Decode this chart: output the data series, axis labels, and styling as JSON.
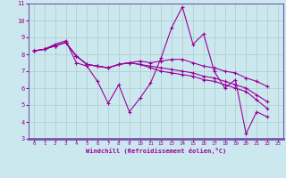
{
  "xlabel": "Windchill (Refroidissement éolien,°C)",
  "xlim": [
    -0.5,
    23.5
  ],
  "ylim": [
    3,
    11
  ],
  "xticks": [
    0,
    1,
    2,
    3,
    4,
    5,
    6,
    7,
    8,
    9,
    10,
    11,
    12,
    13,
    14,
    15,
    16,
    17,
    18,
    19,
    20,
    21,
    22,
    23
  ],
  "yticks": [
    3,
    4,
    5,
    6,
    7,
    8,
    9,
    10,
    11
  ],
  "bg_color": "#cce8ef",
  "grid_color": "#aacccc",
  "line_color": "#990099",
  "spine_color": "#7755aa",
  "series": [
    {
      "x": [
        0,
        1,
        2,
        3,
        4,
        5,
        6,
        7,
        8,
        9,
        10,
        11,
        12,
        13,
        14,
        15,
        16,
        17,
        18,
        19,
        20,
        21,
        22,
        23
      ],
      "y": [
        8.2,
        8.3,
        8.6,
        8.8,
        7.5,
        7.3,
        6.4,
        5.1,
        6.2,
        4.6,
        5.4,
        6.3,
        7.8,
        9.6,
        10.8,
        8.6,
        9.2,
        7.0,
        6.0,
        6.5,
        3.3,
        4.6,
        4.3,
        null
      ]
    },
    {
      "x": [
        0,
        1,
        2,
        3,
        4,
        5,
        6,
        7,
        8,
        9,
        10,
        11,
        12,
        13,
        14,
        15,
        16,
        17,
        18,
        19,
        20,
        21,
        22,
        23
      ],
      "y": [
        8.2,
        8.3,
        8.5,
        8.7,
        7.9,
        7.4,
        7.3,
        7.2,
        7.4,
        7.5,
        7.6,
        7.5,
        7.6,
        7.7,
        7.7,
        7.5,
        7.3,
        7.2,
        7.0,
        6.9,
        6.6,
        6.4,
        6.1,
        null
      ]
    },
    {
      "x": [
        0,
        1,
        2,
        3,
        4,
        5,
        6,
        7,
        8,
        9,
        10,
        11,
        12,
        13,
        14,
        15,
        16,
        17,
        18,
        19,
        20,
        21,
        22,
        23
      ],
      "y": [
        8.2,
        8.3,
        8.5,
        8.7,
        7.9,
        7.4,
        7.3,
        7.2,
        7.4,
        7.5,
        7.4,
        7.3,
        7.2,
        7.1,
        7.0,
        6.9,
        6.7,
        6.6,
        6.4,
        6.2,
        6.0,
        5.6,
        5.2,
        null
      ]
    },
    {
      "x": [
        0,
        1,
        2,
        3,
        4,
        5,
        6,
        7,
        8,
        9,
        10,
        11,
        12,
        13,
        14,
        15,
        16,
        17,
        18,
        19,
        20,
        21,
        22,
        23
      ],
      "y": [
        8.2,
        8.3,
        8.5,
        8.7,
        7.9,
        7.4,
        7.3,
        7.2,
        7.4,
        7.5,
        7.4,
        7.2,
        7.0,
        6.9,
        6.8,
        6.7,
        6.5,
        6.4,
        6.2,
        6.0,
        5.8,
        5.3,
        4.8,
        null
      ]
    }
  ]
}
